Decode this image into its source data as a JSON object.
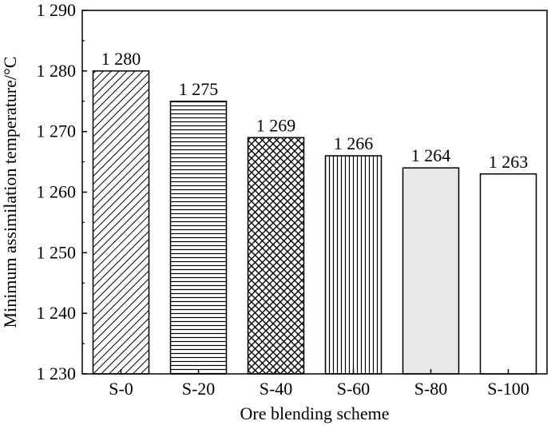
{
  "chart_data": {
    "type": "bar",
    "title": "",
    "xlabel": "Ore blending scheme",
    "ylabel": "Minimum assimilation temperature/°C",
    "categories": [
      "S-0",
      "S-20",
      "S-40",
      "S-60",
      "S-80",
      "S-100"
    ],
    "values": [
      1280,
      1275,
      1269,
      1266,
      1264,
      1263
    ],
    "value_labels": [
      "1 280",
      "1 275",
      "1 269",
      "1 266",
      "1 264",
      "1 263"
    ],
    "ylim": [
      1230,
      1290
    ],
    "yticks": [
      1230,
      1240,
      1250,
      1260,
      1270,
      1280,
      1290
    ],
    "ytick_labels": [
      "1 230",
      "1 240",
      "1 250",
      "1 260",
      "1 270",
      "1 280",
      "1 290"
    ],
    "bar_patterns": [
      "diagonal-hatch",
      "horizontal-lines",
      "cross-hatch",
      "vertical-lines",
      "solid-light-gray",
      "solid-white"
    ],
    "colors": {
      "bar_edge": "#000000",
      "light_gray_fill": "#e8e8e8",
      "white_fill": "#ffffff"
    },
    "grid": false,
    "legend": "none"
  }
}
